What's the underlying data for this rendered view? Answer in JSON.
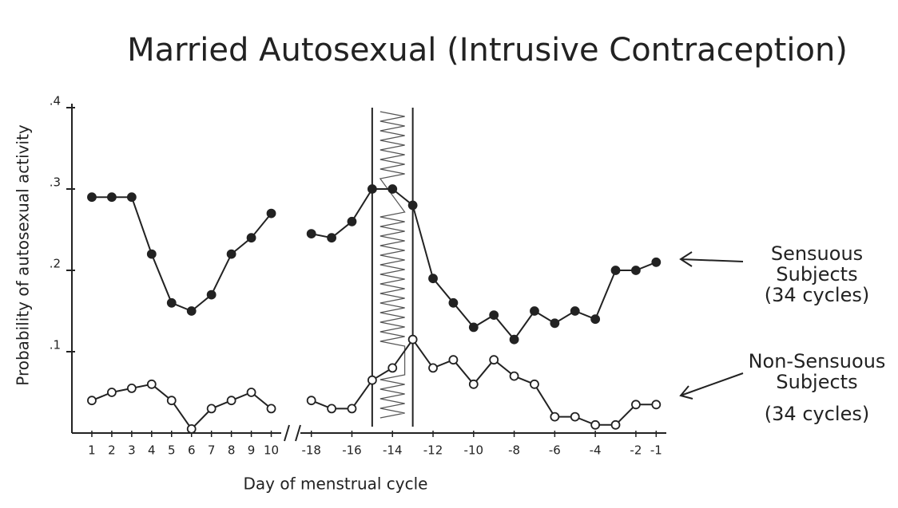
{
  "chart_data": [
    {
      "type": "line",
      "title": "Married Autosexual (Intrusive Contraception)",
      "ylabel": "Probability of autosexual activity",
      "x": [
        1,
        2,
        3,
        4,
        5,
        6,
        7,
        8,
        9,
        10
      ],
      "xlim": [
        0,
        10.5
      ],
      "xticks": [
        1,
        2,
        3,
        4,
        5,
        6,
        7,
        8,
        9,
        10
      ],
      "ylim": [
        0,
        0.4
      ],
      "yticks": [
        {
          "value": 0.1,
          "label": ".1"
        },
        {
          "value": 0.2,
          "label": ".2"
        },
        {
          "value": 0.3,
          "label": ".3"
        },
        {
          "value": 0.4,
          "label": ".4"
        }
      ],
      "series": [
        {
          "name": "Sensuous",
          "color": "#222222",
          "marker": "filled",
          "values": [
            0.29,
            0.29,
            0.29,
            0.22,
            0.16,
            0.15,
            0.17,
            0.22,
            0.24,
            0.27
          ]
        },
        {
          "name": "Non-Sensuous",
          "color": "#222222",
          "marker": "open",
          "values": [
            0.04,
            0.05,
            0.055,
            0.06,
            0.04,
            0.005,
            0.03,
            0.04,
            0.05,
            0.03
          ]
        }
      ]
    },
    {
      "type": "line",
      "xlabel": "Day of menstrual cycle",
      "x": [
        -18,
        -17,
        -16,
        -15,
        -14,
        -13,
        -12,
        -11,
        -10,
        -9,
        -8,
        -7,
        -6,
        -5,
        -4,
        -3,
        -2,
        -1
      ],
      "xlim": [
        -18.5,
        -0.5
      ],
      "xticks": [
        -18,
        -16,
        -14,
        -12,
        -10,
        -8,
        -6,
        -4,
        -2,
        -1
      ],
      "ylim": [
        0,
        0.4
      ],
      "shaded_range": [
        -15,
        -13
      ],
      "series": [
        {
          "name": "Sensuous Subjects",
          "note": "(34 cycles)",
          "color": "#222222",
          "marker": "filled",
          "values": [
            0.245,
            0.24,
            0.26,
            0.3,
            0.3,
            0.28,
            0.19,
            0.16,
            0.13,
            0.145,
            0.115,
            0.15,
            0.135,
            0.15,
            0.14,
            0.2,
            0.2,
            0.21
          ]
        },
        {
          "name": "Non-Sensuous Subjects",
          "note": "(34 cycles)",
          "color": "#222222",
          "marker": "open",
          "values": [
            0.04,
            0.03,
            0.03,
            0.065,
            0.08,
            0.115,
            0.08,
            0.09,
            0.06,
            0.09,
            0.07,
            0.06,
            0.02,
            0.02,
            0.01,
            0.01,
            0.035,
            0.035
          ]
        }
      ]
    }
  ]
}
